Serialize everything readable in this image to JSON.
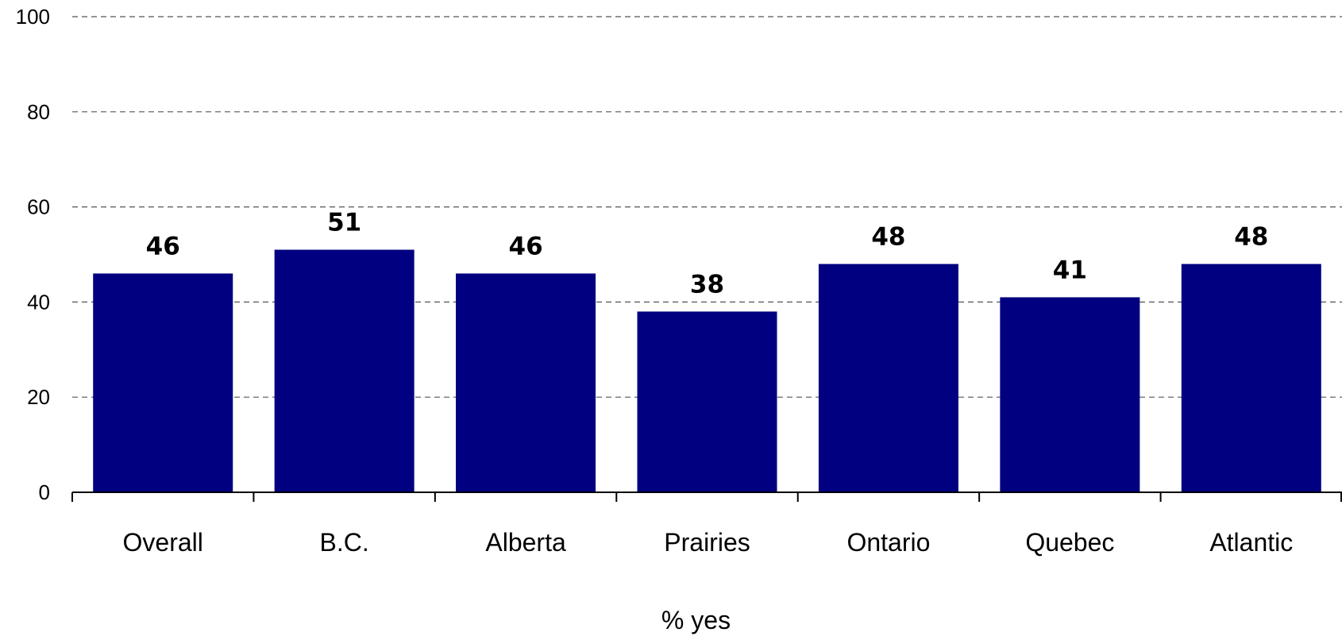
{
  "chart_data": {
    "type": "bar",
    "categories": [
      "Overall",
      "B.C.",
      "Alberta",
      "Prairies",
      "Ontario",
      "Quebec",
      "Atlantic"
    ],
    "values": [
      46,
      51,
      46,
      38,
      48,
      41,
      48
    ],
    "title": "",
    "xlabel": "% yes",
    "ylabel": "",
    "ylim": [
      0,
      100
    ],
    "yticks": [
      0,
      20,
      40,
      60,
      80,
      100
    ],
    "grid": true,
    "legend": "none",
    "bar_color": "#000080",
    "data_labels": true
  }
}
